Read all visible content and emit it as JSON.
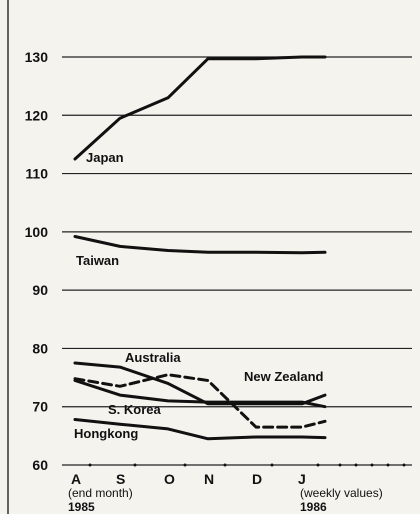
{
  "chart_data": {
    "type": "line",
    "title": "",
    "xlabel": "",
    "ylabel": "",
    "x": [
      "A",
      "S",
      "O",
      "N",
      "D",
      "J"
    ],
    "x_notes": {
      "start_note": "(end month)",
      "start_year": "1985",
      "end_note": "(weekly values)",
      "end_year": "1986"
    },
    "ylim": [
      60,
      130
    ],
    "yticks": [
      60,
      70,
      80,
      90,
      100,
      110,
      120,
      130
    ],
    "grid": "horizontal",
    "series": [
      {
        "name": "Japan",
        "x": [
          "A",
          "S",
          "O",
          "N",
          "D",
          "J",
          "J+"
        ],
        "values": [
          112.5,
          119.5,
          123,
          129.7,
          129.7,
          130,
          130
        ],
        "style": "solid"
      },
      {
        "name": "Taiwan",
        "x": [
          "A",
          "S",
          "O",
          "N",
          "D",
          "J",
          "J+"
        ],
        "values": [
          99.2,
          97.5,
          96.8,
          96.5,
          96.5,
          96.4,
          96.5
        ],
        "style": "solid"
      },
      {
        "name": "Australia",
        "x": [
          "A",
          "S",
          "O",
          "N",
          "D",
          "J",
          "J+"
        ],
        "values": [
          77.5,
          76.8,
          74,
          70.5,
          70.5,
          70.5,
          72
        ],
        "style": "solid"
      },
      {
        "name": "New Zealand",
        "x": [
          "A",
          "S",
          "O",
          "N",
          "D",
          "J",
          "J+"
        ],
        "values": [
          74.8,
          73.5,
          75.5,
          74.5,
          66.5,
          66.5,
          67.5
        ],
        "style": "dashed"
      },
      {
        "name": "S. Korea",
        "x": [
          "A",
          "S",
          "O",
          "N",
          "D",
          "J",
          "J+"
        ],
        "values": [
          74.5,
          72,
          71,
          70.8,
          70.8,
          70.8,
          70
        ],
        "style": "solid"
      },
      {
        "name": "Hongkong",
        "x": [
          "A",
          "S",
          "O",
          "N",
          "D",
          "J",
          "J+"
        ],
        "values": [
          67.8,
          67,
          66.2,
          64.5,
          64.8,
          64.8,
          64.7
        ],
        "style": "solid"
      }
    ],
    "colors": {
      "line": "#111111",
      "grid": "#222222",
      "background": "#f4f3ee"
    }
  }
}
